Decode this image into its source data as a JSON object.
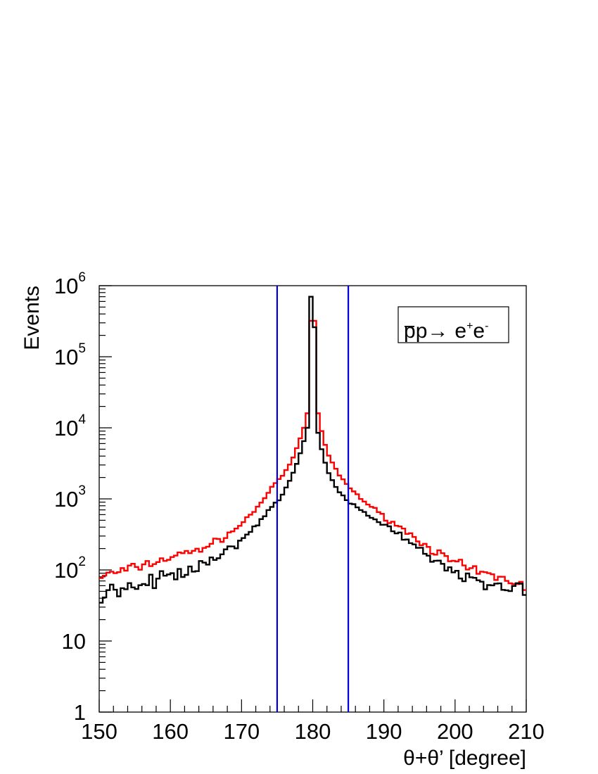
{
  "chart_data": {
    "type": "histogram",
    "xlabel": "θ+θ’ [degree]",
    "ylabel": "Events",
    "xlim": [
      150,
      210
    ],
    "ylim": [
      1,
      1000000
    ],
    "log_y": true,
    "grid": false,
    "legend_placement": "top-right",
    "x_ticks": [
      "150",
      "160",
      "170",
      "180",
      "190",
      "200",
      "210"
    ],
    "y_ticks": [
      {
        "base": "1",
        "exp": ""
      },
      {
        "base": "10",
        "exp": ""
      },
      {
        "base": "10",
        "exp": "2"
      },
      {
        "base": "10",
        "exp": "3"
      },
      {
        "base": "10",
        "exp": "4"
      },
      {
        "base": "10",
        "exp": "5"
      },
      {
        "base": "10",
        "exp": "6"
      }
    ],
    "legend": {
      "p": "p",
      "arrow": "→",
      "e1": "e",
      "plus": "+",
      "e2": "e",
      "minus": "-"
    },
    "cut_lines": {
      "values": [
        175,
        185
      ],
      "color": "#0000dd"
    },
    "bin_width": 0.5,
    "series": [
      {
        "color": "#ff0000",
        "anchors": [
          [
            150,
            80
          ],
          [
            152,
            90
          ],
          [
            154,
            100
          ],
          [
            156,
            115
          ],
          [
            158,
            130
          ],
          [
            160,
            150
          ],
          [
            162,
            170
          ],
          [
            164,
            195
          ],
          [
            166,
            235
          ],
          [
            168,
            310
          ],
          [
            170,
            440
          ],
          [
            172,
            720
          ],
          [
            174,
            1300
          ],
          [
            175,
            1750
          ],
          [
            176,
            2300
          ],
          [
            177,
            3300
          ],
          [
            178,
            6000
          ],
          [
            178.75,
            10000
          ],
          [
            179.25,
            16000
          ],
          [
            179.75,
            320000
          ],
          [
            180.25,
            320000
          ],
          [
            180.75,
            16000
          ],
          [
            181.25,
            9000
          ],
          [
            182,
            4600
          ],
          [
            183,
            2800
          ],
          [
            184,
            2000
          ],
          [
            185,
            1500
          ],
          [
            186,
            1200
          ],
          [
            188,
            800
          ],
          [
            190,
            560
          ],
          [
            192,
            420
          ],
          [
            194,
            300
          ],
          [
            196,
            220
          ],
          [
            198,
            160
          ],
          [
            200,
            125
          ],
          [
            202,
            100
          ],
          [
            204,
            88
          ],
          [
            206,
            78
          ],
          [
            208,
            70
          ],
          [
            210,
            60
          ]
        ]
      },
      {
        "color": "#000000",
        "anchors": [
          [
            150,
            45
          ],
          [
            152,
            48
          ],
          [
            154,
            55
          ],
          [
            156,
            63
          ],
          [
            158,
            72
          ],
          [
            160,
            85
          ],
          [
            162,
            100
          ],
          [
            164,
            115
          ],
          [
            166,
            140
          ],
          [
            168,
            185
          ],
          [
            170,
            255
          ],
          [
            172,
            410
          ],
          [
            174,
            720
          ],
          [
            175,
            900
          ],
          [
            176,
            1250
          ],
          [
            177,
            2000
          ],
          [
            178,
            3600
          ],
          [
            178.75,
            6500
          ],
          [
            179.25,
            10000
          ],
          [
            179.75,
            700000
          ],
          [
            180.25,
            260000
          ],
          [
            180.75,
            8500
          ],
          [
            181.25,
            5000
          ],
          [
            182,
            2600
          ],
          [
            183,
            1600
          ],
          [
            184,
            1150
          ],
          [
            185,
            900
          ],
          [
            186,
            780
          ],
          [
            188,
            560
          ],
          [
            190,
            420
          ],
          [
            192,
            320
          ],
          [
            194,
            240
          ],
          [
            196,
            175
          ],
          [
            198,
            125
          ],
          [
            200,
            92
          ],
          [
            202,
            75
          ],
          [
            204,
            66
          ],
          [
            206,
            60
          ],
          [
            208,
            55
          ],
          [
            210,
            48
          ]
        ]
      }
    ]
  }
}
